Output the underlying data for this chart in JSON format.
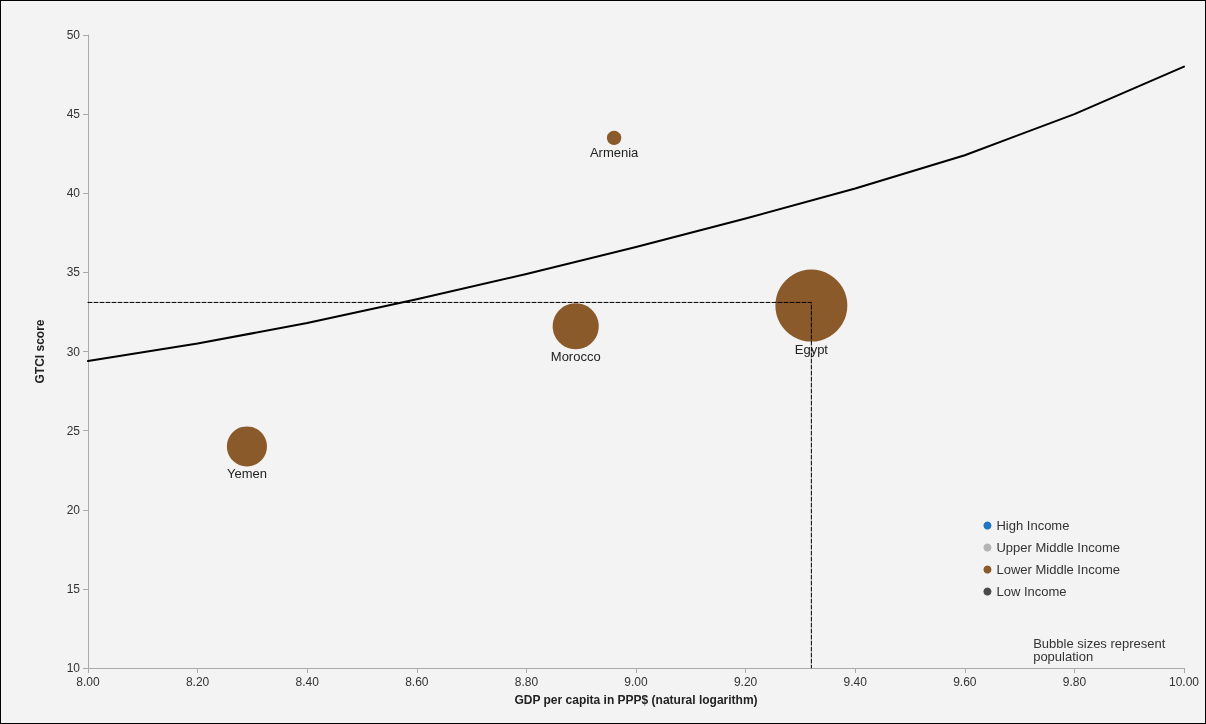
{
  "chart_data": {
    "type": "bubble",
    "xlabel": "GDP per capita in PPP$ (natural logarithm)",
    "ylabel": "GTCI score",
    "xlim": [
      8,
      10
    ],
    "xticks": [
      {
        "value": 8,
        "label": "8.00"
      },
      {
        "value": 8.2,
        "label": "8.20"
      },
      {
        "value": 8.4,
        "label": "8.40"
      },
      {
        "value": 8.6,
        "label": "8.60"
      },
      {
        "value": 8.8,
        "label": "8.80"
      },
      {
        "value": 9,
        "label": "9.00"
      },
      {
        "value": 9.2,
        "label": "9.20"
      },
      {
        "value": 9.4,
        "label": "9.40"
      },
      {
        "value": 9.6,
        "label": "9.60"
      },
      {
        "value": 9.8,
        "label": "9.80"
      },
      {
        "value": 10,
        "label": "10.00"
      }
    ],
    "ylim": [
      10,
      50
    ],
    "yticks": [
      10,
      15,
      20,
      25,
      30,
      35,
      40,
      45,
      50
    ],
    "grid": false,
    "legend": "bottom right",
    "series": [
      {
        "name": "High Income",
        "color": "#1f78c1"
      },
      {
        "name": "Upper Middle Income",
        "color": "#b4b4b4"
      },
      {
        "name": "Lower Middle Income",
        "color": "#8b5a2b",
        "x": [
          8.96,
          8.89,
          9.32,
          8.29
        ],
        "values": [
          43.5,
          31.6,
          32.9,
          24.0
        ],
        "sizes": [
          0.04,
          0.41,
          1,
          0.31
        ]
      },
      {
        "name": "Low Income",
        "color": "#4a4a4a"
      },
      {
        "type": "line",
        "color": "#000000",
        "line_style": "solid",
        "marker": "none",
        "x": [
          8.0,
          8.2,
          8.4,
          8.6,
          8.8,
          9.0,
          9.2,
          9.4,
          9.6,
          9.8,
          10.0
        ],
        "values": [
          29.4,
          30.5,
          31.8,
          33.3,
          34.9,
          36.6,
          38.4,
          40.3,
          42.4,
          45.0,
          48.0
        ]
      },
      {
        "type": "line",
        "color": "#000000",
        "line_style": "dashed",
        "marker": "none",
        "x": [
          8.0,
          9.32,
          9.32
        ],
        "values": [
          33.1,
          33.1,
          10
        ]
      }
    ],
    "annotations": [
      {
        "text": "Armenia",
        "x": 8.96,
        "y": 43.5
      },
      {
        "text": "Morocco",
        "x": 8.89,
        "y": 31.6
      },
      {
        "text": "Egypt",
        "x": 9.32,
        "y": 32.9
      },
      {
        "text": "Yemen",
        "x": 8.29,
        "y": 24.0
      },
      "Bubble sizes represent population"
    ]
  }
}
